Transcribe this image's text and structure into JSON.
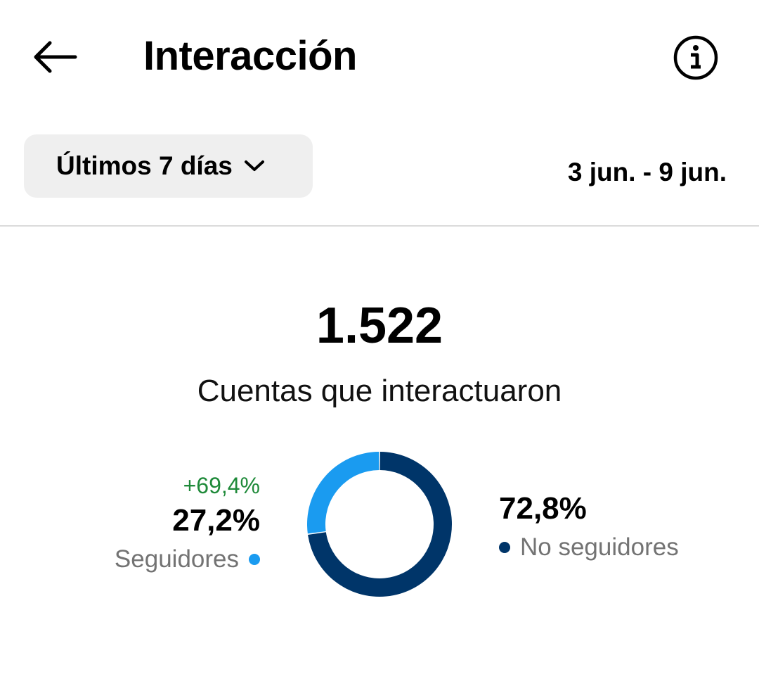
{
  "header": {
    "title": "Interacción",
    "back_icon": "arrow-left-icon",
    "info_icon": "info-circle-icon"
  },
  "filter": {
    "range_label": "Últimos 7 días",
    "date_range": "3 jun. - 9 jun."
  },
  "summary": {
    "total": "1.522",
    "label": "Cuentas que interactuaron"
  },
  "colors": {
    "followers": "#1a9bf0",
    "non_followers": "#003569",
    "change_positive": "#1f8a3a"
  },
  "segments": {
    "followers": {
      "label": "Seguidores",
      "percent_text": "27,2%",
      "change_text": "+69,4%"
    },
    "non_followers": {
      "label": "No seguidores",
      "percent_text": "72,8%"
    }
  },
  "chart_data": {
    "type": "pie",
    "categories": [
      "Seguidores",
      "No seguidores"
    ],
    "values": [
      27.2,
      72.8
    ],
    "colors": [
      "#1a9bf0",
      "#003569"
    ]
  }
}
